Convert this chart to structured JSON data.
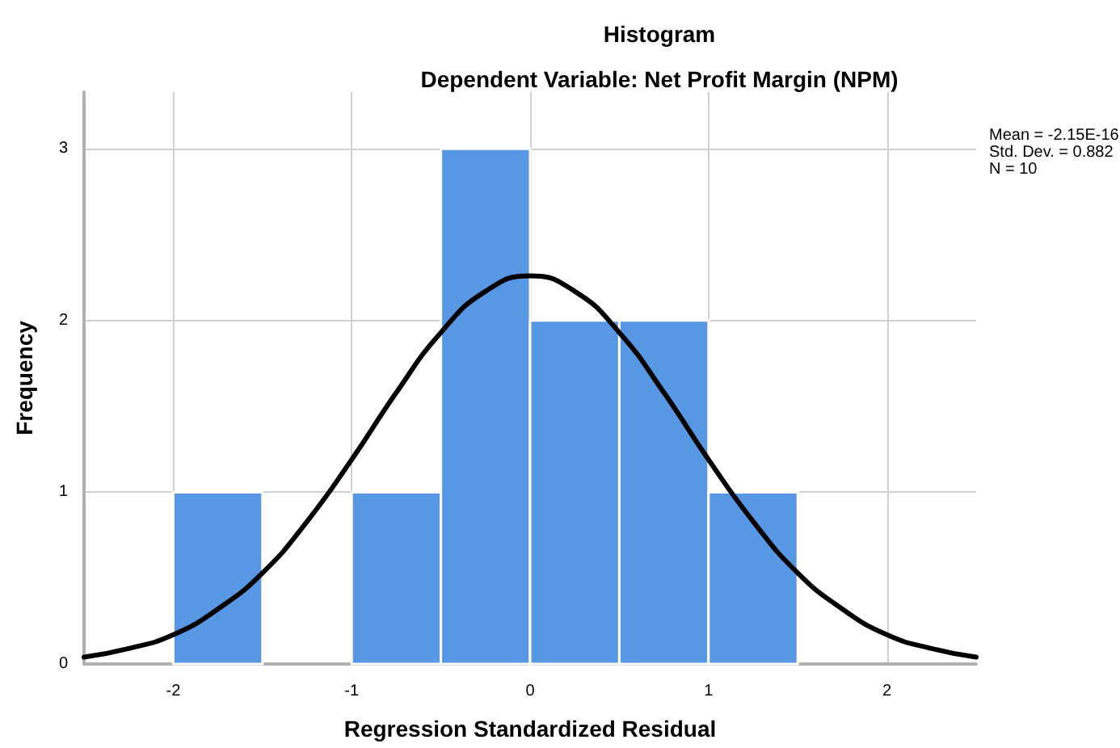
{
  "chart_data": {
    "type": "histogram",
    "title": "Histogram",
    "subtitle": "Dependent Variable: Net Profit Margin (NPM)",
    "xlabel": "Regression Standardized Residual",
    "ylabel": "Frequency",
    "bins": [
      -2,
      -1.5,
      -1,
      -0.5,
      0,
      0.5,
      1,
      1.5
    ],
    "values": [
      1,
      0,
      1,
      3,
      2,
      2,
      1
    ],
    "color": "#5897e3",
    "series": [
      {
        "type": "line",
        "color": "#000000",
        "x": [
          -2.5,
          -2.25,
          -2,
          -1.75,
          -1.5,
          -1.25,
          -1,
          -0.75,
          -0.5,
          -0.25,
          0,
          0.25,
          0.5,
          0.75,
          1,
          1.25,
          1.5,
          1.75,
          2,
          2.25,
          2.5
        ],
        "values": [
          0.04,
          0.09,
          0.17,
          0.32,
          0.53,
          0.83,
          1.19,
          1.58,
          1.93,
          2.17,
          2.26,
          2.17,
          1.93,
          1.58,
          1.19,
          0.83,
          0.53,
          0.32,
          0.17,
          0.09,
          0.04
        ]
      }
    ],
    "xlim": [
      -2.5,
      2.5
    ],
    "xticks": [
      -2,
      -1,
      0,
      1,
      2
    ],
    "ylim": [
      0,
      3.33
    ],
    "yticks": [
      0,
      1,
      2,
      3
    ],
    "grid": true,
    "marker": "none",
    "line_style": "solid",
    "annotations": [
      "Mean = -2.15E-16",
      "Std. Dev. = 0.882",
      "N = 10"
    ]
  }
}
